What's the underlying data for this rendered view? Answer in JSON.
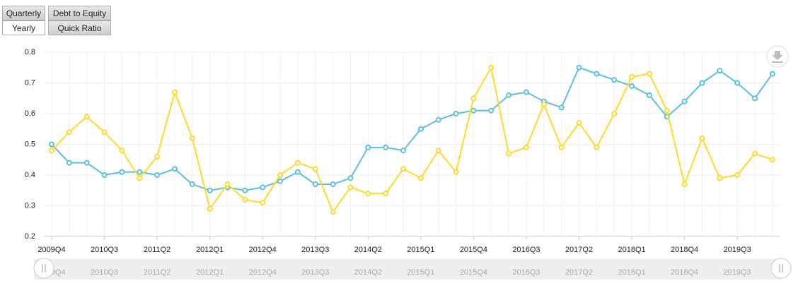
{
  "buttons": {
    "period": [
      "Quarterly",
      "Yearly"
    ],
    "metric": [
      "Debt to Equity",
      "Quick Ratio"
    ]
  },
  "chart_data": {
    "type": "line",
    "categories": [
      "2009Q4",
      null,
      null,
      "2010Q3",
      null,
      null,
      "2011Q2",
      null,
      null,
      "2012Q1",
      null,
      null,
      "2012Q4",
      null,
      null,
      "2013Q3",
      null,
      null,
      "2014Q2",
      null,
      null,
      "2015Q1",
      null,
      null,
      "2015Q4",
      null,
      null,
      "2016Q3",
      null,
      null,
      "2017Q2",
      null,
      null,
      "2018Q1",
      null,
      null,
      "2018Q4",
      null,
      null,
      "2019Q3",
      null,
      null
    ],
    "series": [
      {
        "color": "#5bc0de",
        "values": [
          0.5,
          0.44,
          0.44,
          0.4,
          0.41,
          0.41,
          0.4,
          0.42,
          0.37,
          0.35,
          0.36,
          0.35,
          0.36,
          0.38,
          0.41,
          0.37,
          0.37,
          0.39,
          0.49,
          0.49,
          0.48,
          0.55,
          0.58,
          0.6,
          0.61,
          0.61,
          0.66,
          0.67,
          0.64,
          0.62,
          0.75,
          0.73,
          0.71,
          0.69,
          0.66,
          0.59,
          0.64,
          0.7,
          0.74,
          0.7,
          0.65,
          0.73
        ]
      },
      {
        "color": "#fbdb2a",
        "values": [
          0.48,
          0.54,
          0.59,
          0.54,
          0.48,
          0.39,
          0.46,
          0.67,
          0.52,
          0.29,
          0.37,
          0.32,
          0.31,
          0.4,
          0.44,
          0.42,
          0.28,
          0.36,
          0.34,
          0.34,
          0.42,
          0.39,
          0.48,
          0.41,
          0.65,
          0.75,
          0.47,
          0.49,
          0.63,
          0.49,
          0.57,
          0.49,
          0.6,
          0.72,
          0.73,
          0.61,
          0.37,
          0.52,
          0.39,
          0.4,
          0.47,
          0.45
        ]
      }
    ],
    "ylim": [
      0.2,
      0.8
    ],
    "yticks": [
      0.2,
      0.3,
      0.4,
      0.5,
      0.6,
      0.7,
      0.8
    ],
    "grid": true
  }
}
